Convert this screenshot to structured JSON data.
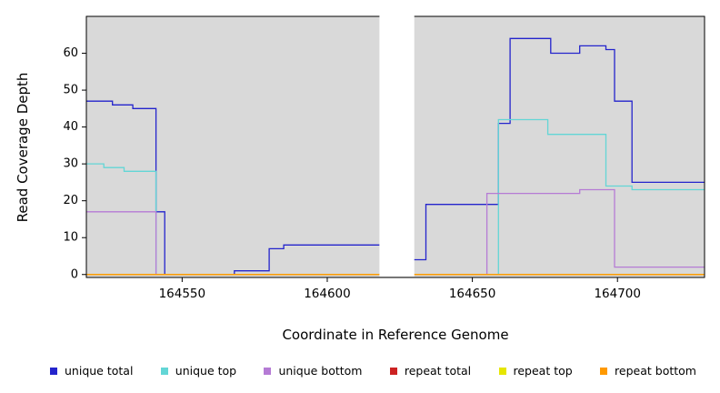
{
  "chart_data": {
    "type": "line",
    "subtype": "step",
    "title": "",
    "xlabel": "Coordinate in Reference Genome",
    "ylabel": "Read Coverage Depth",
    "xlim": [
      164517,
      164730
    ],
    "ylim": [
      -0.8,
      70
    ],
    "xticks": [
      164550,
      164600,
      164650,
      164700
    ],
    "yticks": [
      0,
      10,
      20,
      30,
      40,
      50,
      60
    ],
    "plot_background": "#d9d9d9",
    "figure_background": "#ffffff",
    "gap_region": {
      "x0": 164618,
      "x1": 164630,
      "color": "#ffffff"
    },
    "series": [
      {
        "name": "unique total",
        "color": "#2424cc",
        "segments": [
          {
            "points": [
              [
                164517,
                47
              ],
              [
                164526,
                46
              ],
              [
                164533,
                45
              ],
              [
                164541,
                17
              ],
              [
                164544,
                0
              ],
              [
                164568,
                1
              ],
              [
                164580,
                7
              ],
              [
                164585,
                8
              ]
            ],
            "end": 164618
          },
          {
            "points": [
              [
                164629,
                4
              ],
              [
                164634,
                19
              ],
              [
                164659,
                41
              ],
              [
                164663,
                64
              ],
              [
                164677,
                60
              ],
              [
                164687,
                62
              ],
              [
                164696,
                61
              ],
              [
                164699,
                47
              ],
              [
                164705,
                25
              ]
            ],
            "end": 164730
          }
        ]
      },
      {
        "name": "unique top",
        "color": "#63d6d6",
        "segments": [
          {
            "points": [
              [
                164517,
                30
              ],
              [
                164523,
                29
              ],
              [
                164530,
                28
              ],
              [
                164541,
                0
              ]
            ],
            "end": 164618
          },
          {
            "points": [
              [
                164629,
                0
              ],
              [
                164659,
                42
              ],
              [
                164676,
                38
              ],
              [
                164696,
                24
              ],
              [
                164705,
                23
              ]
            ],
            "end": 164730
          }
        ]
      },
      {
        "name": "unique bottom",
        "color": "#b57bd5",
        "segments": [
          {
            "points": [
              [
                164517,
                17
              ],
              [
                164541,
                0
              ]
            ],
            "end": 164618
          },
          {
            "points": [
              [
                164629,
                0
              ],
              [
                164655,
                22
              ],
              [
                164687,
                23
              ],
              [
                164699,
                2
              ]
            ],
            "end": 164730
          }
        ]
      },
      {
        "name": "repeat total",
        "color": "#cc2222",
        "segments": [
          {
            "points": [
              [
                164517,
                0
              ]
            ],
            "end": 164618
          },
          {
            "points": [
              [
                164629,
                0
              ]
            ],
            "end": 164730
          }
        ]
      },
      {
        "name": "repeat top",
        "color": "#e6e600",
        "segments": [
          {
            "points": [
              [
                164517,
                0
              ]
            ],
            "end": 164618
          },
          {
            "points": [
              [
                164629,
                0
              ]
            ],
            "end": 164730
          }
        ]
      },
      {
        "name": "repeat bottom",
        "color": "#ff9900",
        "segments": [
          {
            "points": [
              [
                164517,
                0
              ]
            ],
            "end": 164618
          },
          {
            "points": [
              [
                164629,
                0
              ]
            ],
            "end": 164730
          }
        ]
      }
    ],
    "legend": {
      "position": "bottom",
      "items": [
        "unique total",
        "unique top",
        "unique bottom",
        "repeat total",
        "repeat top",
        "repeat bottom"
      ]
    }
  }
}
